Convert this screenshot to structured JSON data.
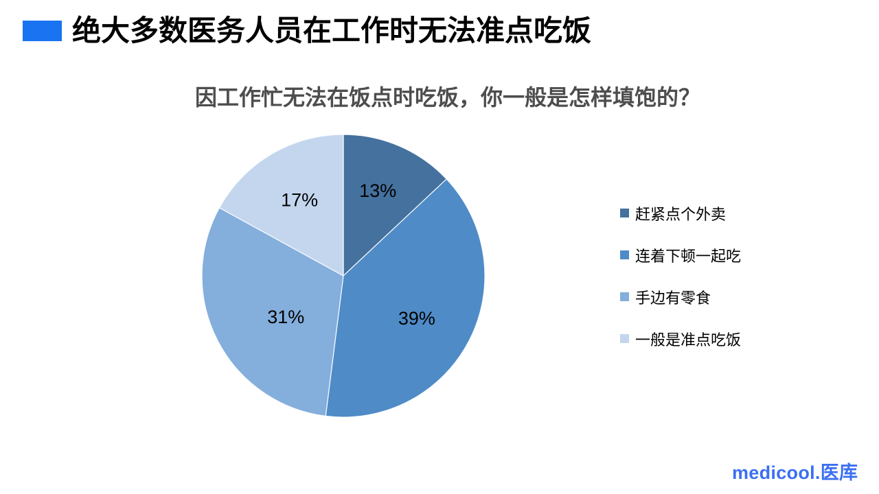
{
  "slide": {
    "title": "绝大多数医务人员在工作时无法准点吃饭",
    "accent_color": "#1A73F1"
  },
  "chart_data": {
    "type": "pie",
    "title": "因工作忙无法在饭点时吃饭，你一般是怎样填饱的？",
    "categories": [
      "赶紧点个外卖",
      "连着下顿一起吃",
      "手边有零食",
      "一般是准点吃饭"
    ],
    "values": [
      13,
      39,
      31,
      17
    ],
    "labels": [
      "13%",
      "39%",
      "31%",
      "17%"
    ],
    "unit": "%",
    "colors": [
      "#44719E",
      "#4F8BC7",
      "#84AEDC",
      "#C3D6EE"
    ],
    "start_angle_deg": 0,
    "direction": "clockwise",
    "legend_position": "right",
    "label_color": "#000000"
  },
  "footer": {
    "logo_text": "medicool.医库",
    "logo_color": "#3B6FF2"
  }
}
